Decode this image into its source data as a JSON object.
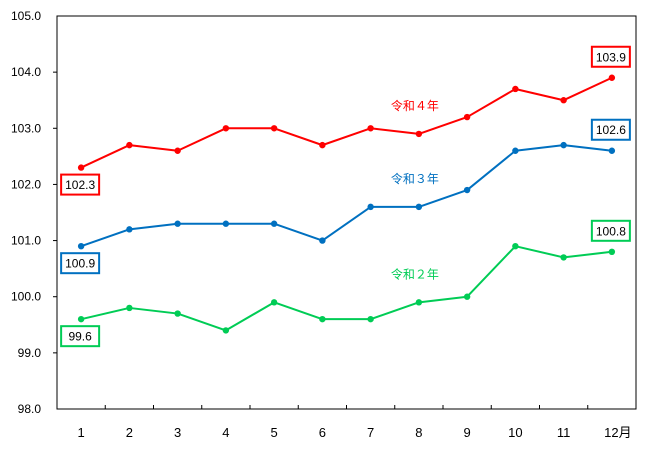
{
  "chart_data": {
    "type": "line",
    "categories": [
      "1",
      "2",
      "3",
      "4",
      "5",
      "6",
      "7",
      "8",
      "9",
      "10",
      "11",
      "12月"
    ],
    "ylim": [
      98.0,
      105.0
    ],
    "yticks": [
      "98.0",
      "99.0",
      "100.0",
      "101.0",
      "102.0",
      "103.0",
      "104.0",
      "105.0"
    ],
    "grid": false,
    "series": [
      {
        "name": "令和４年",
        "color": "#ff0000",
        "values": [
          102.3,
          102.7,
          102.6,
          103.0,
          103.0,
          102.7,
          103.0,
          102.9,
          103.2,
          103.7,
          103.5,
          103.9
        ],
        "start_label": "102.3",
        "end_label": "103.9"
      },
      {
        "name": "令和３年",
        "color": "#0070c0",
        "values": [
          100.9,
          101.2,
          101.3,
          101.3,
          101.3,
          101.0,
          101.6,
          101.6,
          101.9,
          102.6,
          102.7,
          102.6
        ],
        "start_label": "100.9",
        "end_label": "102.6"
      },
      {
        "name": "令和２年",
        "color": "#00cc55",
        "values": [
          99.6,
          99.8,
          99.7,
          99.4,
          99.9,
          99.6,
          99.6,
          99.9,
          100.0,
          100.9,
          100.7,
          100.8
        ],
        "start_label": "99.6",
        "end_label": "100.8"
      }
    ]
  }
}
